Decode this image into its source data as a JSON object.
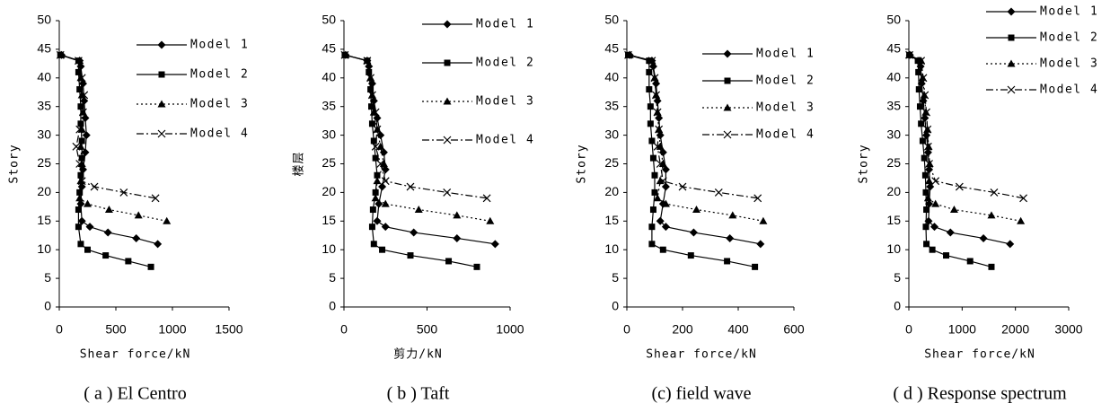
{
  "chart_data": [
    {
      "type": "line",
      "title": "( a ) El Centro",
      "xlabel": "Shear force/kN",
      "ylabel": "Story",
      "xlim": [
        0,
        1500
      ],
      "ylim": [
        0,
        50
      ],
      "xticks": [
        0,
        500,
        1000,
        1500
      ],
      "yticks": [
        0,
        5,
        10,
        15,
        20,
        25,
        30,
        35,
        40,
        45,
        50
      ],
      "legend": "upper right",
      "series": [
        {
          "name": "Model 1",
          "color": "#000000",
          "marker": "diamond",
          "dash": "solid",
          "y": [
            11,
            12,
            13,
            14,
            15,
            18,
            21,
            24,
            27,
            30,
            33,
            36,
            39,
            42,
            43,
            44
          ],
          "x": [
            870,
            680,
            430,
            270,
            200,
            190,
            200,
            210,
            230,
            240,
            230,
            220,
            210,
            190,
            180,
            20
          ]
        },
        {
          "name": "Model 2",
          "color": "#000000",
          "marker": "square",
          "dash": "solid",
          "y": [
            7,
            8,
            9,
            10,
            11,
            14,
            17,
            20,
            23,
            26,
            29,
            32,
            35,
            38,
            41,
            43,
            44
          ],
          "x": [
            810,
            610,
            410,
            250,
            190,
            170,
            170,
            180,
            190,
            200,
            200,
            190,
            190,
            180,
            170,
            170,
            10
          ]
        },
        {
          "name": "Model 3",
          "color": "#000000",
          "marker": "triangle",
          "dash": "dotted",
          "y": [
            15,
            16,
            17,
            18,
            19,
            22,
            25,
            28,
            31,
            34,
            37,
            40,
            43,
            44
          ],
          "x": [
            950,
            700,
            440,
            250,
            180,
            190,
            200,
            190,
            200,
            210,
            200,
            190,
            180,
            15
          ]
        },
        {
          "name": "Model 4",
          "color": "#000000",
          "marker": "cross",
          "dash": "dashdot",
          "y": [
            19,
            20,
            21,
            22,
            25,
            28,
            31,
            34,
            37,
            40,
            43,
            44
          ],
          "x": [
            850,
            570,
            310,
            200,
            180,
            150,
            180,
            210,
            220,
            200,
            170,
            10
          ]
        }
      ]
    },
    {
      "type": "line",
      "title": "( b ) Taft",
      "xlabel": "剪力/kN",
      "ylabel": "楼层",
      "xlim": [
        0,
        1000
      ],
      "ylim": [
        0,
        50
      ],
      "xticks": [
        0,
        500,
        1000
      ],
      "yticks": [
        0,
        5,
        10,
        15,
        20,
        25,
        30,
        35,
        40,
        45,
        50
      ],
      "legend": "upper right",
      "series": [
        {
          "name": "Model 1",
          "color": "#000000",
          "marker": "diamond",
          "dash": "solid",
          "y": [
            11,
            12,
            13,
            14,
            15,
            18,
            21,
            24,
            27,
            30,
            33,
            36,
            39,
            42,
            43,
            44
          ],
          "x": [
            910,
            680,
            420,
            250,
            200,
            210,
            230,
            250,
            240,
            220,
            200,
            180,
            170,
            150,
            140,
            10
          ]
        },
        {
          "name": "Model 2",
          "color": "#000000",
          "marker": "square",
          "dash": "solid",
          "y": [
            7,
            8,
            9,
            10,
            11,
            14,
            17,
            20,
            23,
            26,
            29,
            32,
            35,
            38,
            41,
            43,
            44
          ],
          "x": [
            800,
            630,
            400,
            230,
            180,
            170,
            175,
            190,
            200,
            190,
            180,
            170,
            165,
            160,
            150,
            140,
            5
          ]
        },
        {
          "name": "Model 3",
          "color": "#000000",
          "marker": "triangle",
          "dash": "dotted",
          "y": [
            15,
            16,
            17,
            18,
            19,
            22,
            25,
            28,
            31,
            34,
            37,
            40,
            43,
            44
          ],
          "x": [
            880,
            680,
            450,
            250,
            190,
            200,
            240,
            220,
            200,
            180,
            170,
            160,
            140,
            10
          ]
        },
        {
          "name": "Model 4",
          "color": "#000000",
          "marker": "cross",
          "dash": "dashdot",
          "y": [
            19,
            20,
            21,
            22,
            25,
            28,
            31,
            34,
            37,
            40,
            43,
            44
          ],
          "x": [
            860,
            620,
            400,
            250,
            220,
            190,
            200,
            190,
            170,
            160,
            140,
            5
          ]
        }
      ]
    },
    {
      "type": "line",
      "title": "(c) field wave",
      "xlabel": "Shear force/kN",
      "ylabel": "Story",
      "xlim": [
        0,
        600
      ],
      "ylim": [
        0,
        50
      ],
      "xticks": [
        0,
        200,
        400,
        600
      ],
      "yticks": [
        0,
        5,
        10,
        15,
        20,
        25,
        30,
        35,
        40,
        45,
        50
      ],
      "legend": "upper right",
      "series": [
        {
          "name": "Model 1",
          "color": "#000000",
          "marker": "diamond",
          "dash": "solid",
          "y": [
            11,
            12,
            13,
            14,
            15,
            18,
            21,
            24,
            27,
            30,
            33,
            36,
            39,
            42,
            43,
            44
          ],
          "x": [
            480,
            370,
            240,
            140,
            120,
            130,
            140,
            140,
            130,
            120,
            115,
            110,
            105,
            95,
            90,
            10
          ]
        },
        {
          "name": "Model 2",
          "color": "#000000",
          "marker": "square",
          "dash": "solid",
          "y": [
            7,
            8,
            9,
            10,
            11,
            14,
            17,
            20,
            23,
            26,
            29,
            32,
            35,
            38,
            41,
            43,
            44
          ],
          "x": [
            460,
            360,
            230,
            130,
            90,
            90,
            95,
            100,
            100,
            95,
            90,
            85,
            85,
            80,
            80,
            80,
            5
          ]
        },
        {
          "name": "Model 3",
          "color": "#000000",
          "marker": "triangle",
          "dash": "dotted",
          "y": [
            15,
            16,
            17,
            18,
            19,
            22,
            25,
            28,
            31,
            34,
            37,
            40,
            43,
            44
          ],
          "x": [
            490,
            380,
            250,
            140,
            110,
            120,
            130,
            120,
            115,
            110,
            105,
            100,
            90,
            10
          ]
        },
        {
          "name": "Model 4",
          "color": "#000000",
          "marker": "cross",
          "dash": "dashdot",
          "y": [
            19,
            20,
            21,
            22,
            25,
            28,
            31,
            34,
            37,
            40,
            43,
            44
          ],
          "x": [
            470,
            330,
            200,
            130,
            120,
            110,
            115,
            110,
            105,
            100,
            90,
            5
          ]
        }
      ]
    },
    {
      "type": "line",
      "title": "( d ) Response spectrum",
      "xlabel": "Shear force/kN",
      "ylabel": "Story",
      "xlim": [
        0,
        3000
      ],
      "ylim": [
        0,
        50
      ],
      "xticks": [
        0,
        1000,
        2000,
        3000
      ],
      "yticks": [
        0,
        5,
        10,
        15,
        20,
        25,
        30,
        35,
        40,
        45,
        50
      ],
      "legend": "upper right",
      "series": [
        {
          "name": "Model 1",
          "color": "#000000",
          "marker": "diamond",
          "dash": "solid",
          "y": [
            11,
            12,
            13,
            14,
            15,
            18,
            21,
            24,
            27,
            30,
            33,
            36,
            39,
            42,
            43,
            44
          ],
          "x": [
            1900,
            1400,
            780,
            480,
            370,
            380,
            400,
            380,
            360,
            330,
            300,
            270,
            240,
            220,
            200,
            20
          ]
        },
        {
          "name": "Model 2",
          "color": "#000000",
          "marker": "square",
          "dash": "solid",
          "y": [
            7,
            8,
            9,
            10,
            11,
            14,
            17,
            20,
            23,
            26,
            29,
            32,
            35,
            38,
            41,
            43,
            44
          ],
          "x": [
            1550,
            1150,
            700,
            440,
            330,
            320,
            330,
            320,
            310,
            290,
            260,
            230,
            210,
            190,
            180,
            170,
            10
          ]
        },
        {
          "name": "Model 3",
          "color": "#000000",
          "marker": "triangle",
          "dash": "dotted",
          "y": [
            15,
            16,
            17,
            18,
            19,
            22,
            25,
            28,
            31,
            34,
            37,
            40,
            43,
            44
          ],
          "x": [
            2100,
            1550,
            850,
            500,
            360,
            380,
            390,
            370,
            350,
            320,
            290,
            260,
            230,
            10
          ]
        },
        {
          "name": "Model 4",
          "color": "#000000",
          "marker": "cross",
          "dash": "dashdot",
          "y": [
            19,
            20,
            21,
            22,
            25,
            28,
            31,
            34,
            37,
            40,
            43,
            44
          ],
          "x": [
            2150,
            1600,
            950,
            500,
            380,
            360,
            350,
            330,
            300,
            270,
            230,
            10
          ]
        }
      ]
    }
  ]
}
